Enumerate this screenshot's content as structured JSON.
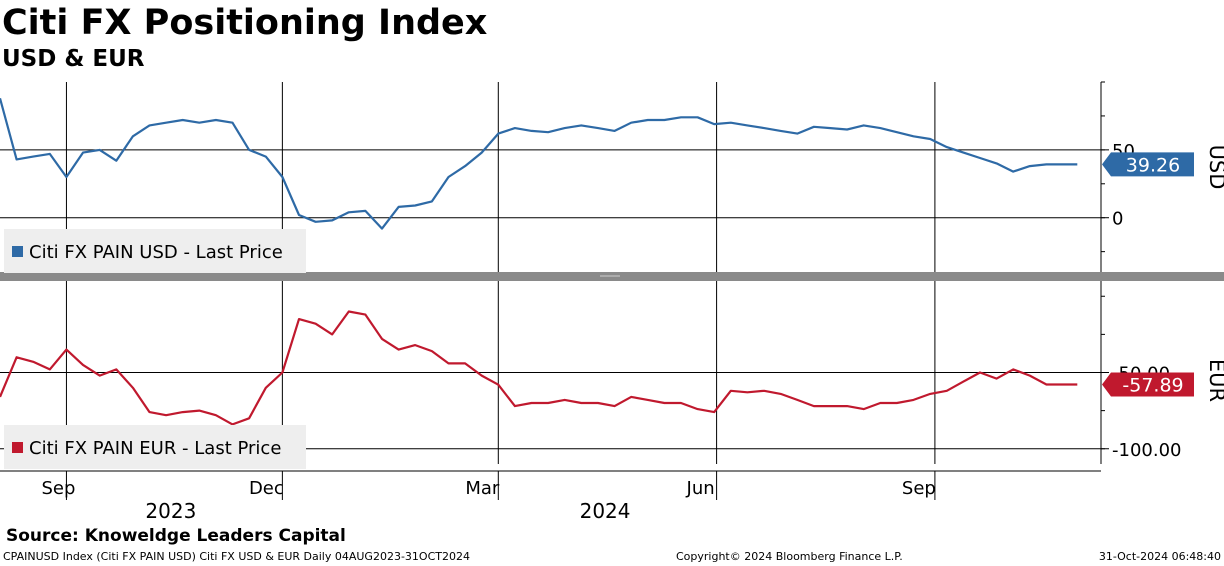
{
  "header": {
    "title": "Citi FX Positioning Index",
    "subtitle": "USD & EUR"
  },
  "footer": {
    "source": "Source: Knoweldge Leaders Capital",
    "ticker_info": "CPAINUSD Index (Citi FX PAIN USD) Citi FX USD & EUR  Daily 04AUG2023-31OCT2024",
    "copyright": "Copyright© 2024 Bloomberg Finance L.P.",
    "timestamp": "31-Oct-2024 06:48:40"
  },
  "colors": {
    "usd": "#2e6aa6",
    "eur": "#c0192e",
    "usd_badge": "#2e6aa6",
    "eur_badge": "#c0192e"
  },
  "chart_data": [
    {
      "type": "line",
      "panel": "top",
      "series": [
        {
          "name": "Citi FX PAIN USD - Last Price",
          "x": [
            "2023-08-04",
            "2023-08-11",
            "2023-08-18",
            "2023-08-25",
            "2023-09-01",
            "2023-09-08",
            "2023-09-15",
            "2023-09-22",
            "2023-09-29",
            "2023-10-06",
            "2023-10-13",
            "2023-10-20",
            "2023-10-27",
            "2023-11-03",
            "2023-11-10",
            "2023-11-17",
            "2023-11-24",
            "2023-12-01",
            "2023-12-08",
            "2023-12-15",
            "2023-12-22",
            "2023-12-29",
            "2024-01-05",
            "2024-01-12",
            "2024-01-19",
            "2024-01-26",
            "2024-02-02",
            "2024-02-09",
            "2024-02-16",
            "2024-02-23",
            "2024-03-01",
            "2024-03-08",
            "2024-03-15",
            "2024-03-22",
            "2024-03-29",
            "2024-04-05",
            "2024-04-12",
            "2024-04-19",
            "2024-04-26",
            "2024-05-03",
            "2024-05-10",
            "2024-05-17",
            "2024-05-24",
            "2024-05-31",
            "2024-06-07",
            "2024-06-14",
            "2024-06-21",
            "2024-06-28",
            "2024-07-05",
            "2024-07-12",
            "2024-07-19",
            "2024-07-26",
            "2024-08-02",
            "2024-08-09",
            "2024-08-16",
            "2024-08-23",
            "2024-08-30",
            "2024-09-06",
            "2024-09-13",
            "2024-09-20",
            "2024-09-27",
            "2024-10-04",
            "2024-10-11",
            "2024-10-18",
            "2024-10-25",
            "2024-10-31"
          ],
          "values": [
            88,
            43,
            45,
            47,
            30,
            48,
            50,
            42,
            60,
            68,
            70,
            72,
            70,
            72,
            70,
            50,
            45,
            30,
            2,
            -3,
            -2,
            4,
            5,
            -8,
            8,
            9,
            12,
            30,
            38,
            48,
            62,
            66,
            64,
            63,
            66,
            68,
            66,
            64,
            70,
            72,
            72,
            74,
            74,
            69,
            70,
            68,
            66,
            64,
            62,
            67,
            66,
            65,
            68,
            66,
            63,
            60,
            58,
            52,
            48,
            44,
            40,
            34,
            38,
            39.26,
            39.26,
            39.26
          ]
        }
      ],
      "yticks": [
        0,
        50
      ],
      "ylim": [
        -40,
        100
      ],
      "last_value_label": "39.26",
      "axis_label": "USD",
      "grid": true,
      "legend": "bottom-left"
    },
    {
      "type": "line",
      "panel": "bottom",
      "series": [
        {
          "name": "Citi FX PAIN EUR - Last Price",
          "x": [
            "2023-08-04",
            "2023-08-11",
            "2023-08-18",
            "2023-08-25",
            "2023-09-01",
            "2023-09-08",
            "2023-09-15",
            "2023-09-22",
            "2023-09-29",
            "2023-10-06",
            "2023-10-13",
            "2023-10-20",
            "2023-10-27",
            "2023-11-03",
            "2023-11-10",
            "2023-11-17",
            "2023-11-24",
            "2023-12-01",
            "2023-12-08",
            "2023-12-15",
            "2023-12-22",
            "2023-12-29",
            "2024-01-05",
            "2024-01-12",
            "2024-01-19",
            "2024-01-26",
            "2024-02-02",
            "2024-02-09",
            "2024-02-16",
            "2024-02-23",
            "2024-03-01",
            "2024-03-08",
            "2024-03-15",
            "2024-03-22",
            "2024-03-29",
            "2024-04-05",
            "2024-04-12",
            "2024-04-19",
            "2024-04-26",
            "2024-05-03",
            "2024-05-10",
            "2024-05-17",
            "2024-05-24",
            "2024-05-31",
            "2024-06-07",
            "2024-06-14",
            "2024-06-21",
            "2024-06-28",
            "2024-07-05",
            "2024-07-12",
            "2024-07-19",
            "2024-07-26",
            "2024-08-02",
            "2024-08-09",
            "2024-08-16",
            "2024-08-23",
            "2024-08-30",
            "2024-09-06",
            "2024-09-13",
            "2024-09-20",
            "2024-09-27",
            "2024-10-04",
            "2024-10-11",
            "2024-10-18",
            "2024-10-25",
            "2024-10-31"
          ],
          "values": [
            -66,
            -40,
            -43,
            -48,
            -35,
            -45,
            -52,
            -48,
            -60,
            -76,
            -78,
            -76,
            -75,
            -78,
            -84,
            -80,
            -60,
            -50,
            -15,
            -18,
            -25,
            -10,
            -12,
            -28,
            -35,
            -32,
            -36,
            -44,
            -44,
            -52,
            -58,
            -72,
            -70,
            -70,
            -68,
            -70,
            -70,
            -72,
            -66,
            -68,
            -70,
            -70,
            -74,
            -76,
            -62,
            -63,
            -62,
            -64,
            -68,
            -72,
            -72,
            -72,
            -74,
            -70,
            -70,
            -68,
            -64,
            -62,
            -56,
            -50,
            -54,
            -48,
            -52,
            -57.89,
            -57.89,
            -57.89
          ]
        }
      ],
      "yticks": [
        -50,
        -100
      ],
      "ytick_labels": [
        "-50.00",
        "-100.00"
      ],
      "ylim": [
        -110,
        10
      ],
      "last_value_label": "-57.89",
      "axis_label": "EUR",
      "grid": true,
      "legend": "bottom-left"
    }
  ],
  "x_axis": {
    "months": [
      {
        "label": "Sep",
        "date": "2023-09-01"
      },
      {
        "label": "Dec",
        "date": "2023-12-01"
      },
      {
        "label": "Mar",
        "date": "2024-03-01"
      },
      {
        "label": "Jun",
        "date": "2024-06-01"
      },
      {
        "label": "Sep",
        "date": "2024-09-01"
      }
    ],
    "years": [
      {
        "label": "2023",
        "date": "2023-10-15"
      },
      {
        "label": "2024",
        "date": "2024-04-15"
      }
    ],
    "range": [
      "2023-08-04",
      "2024-11-10"
    ]
  }
}
